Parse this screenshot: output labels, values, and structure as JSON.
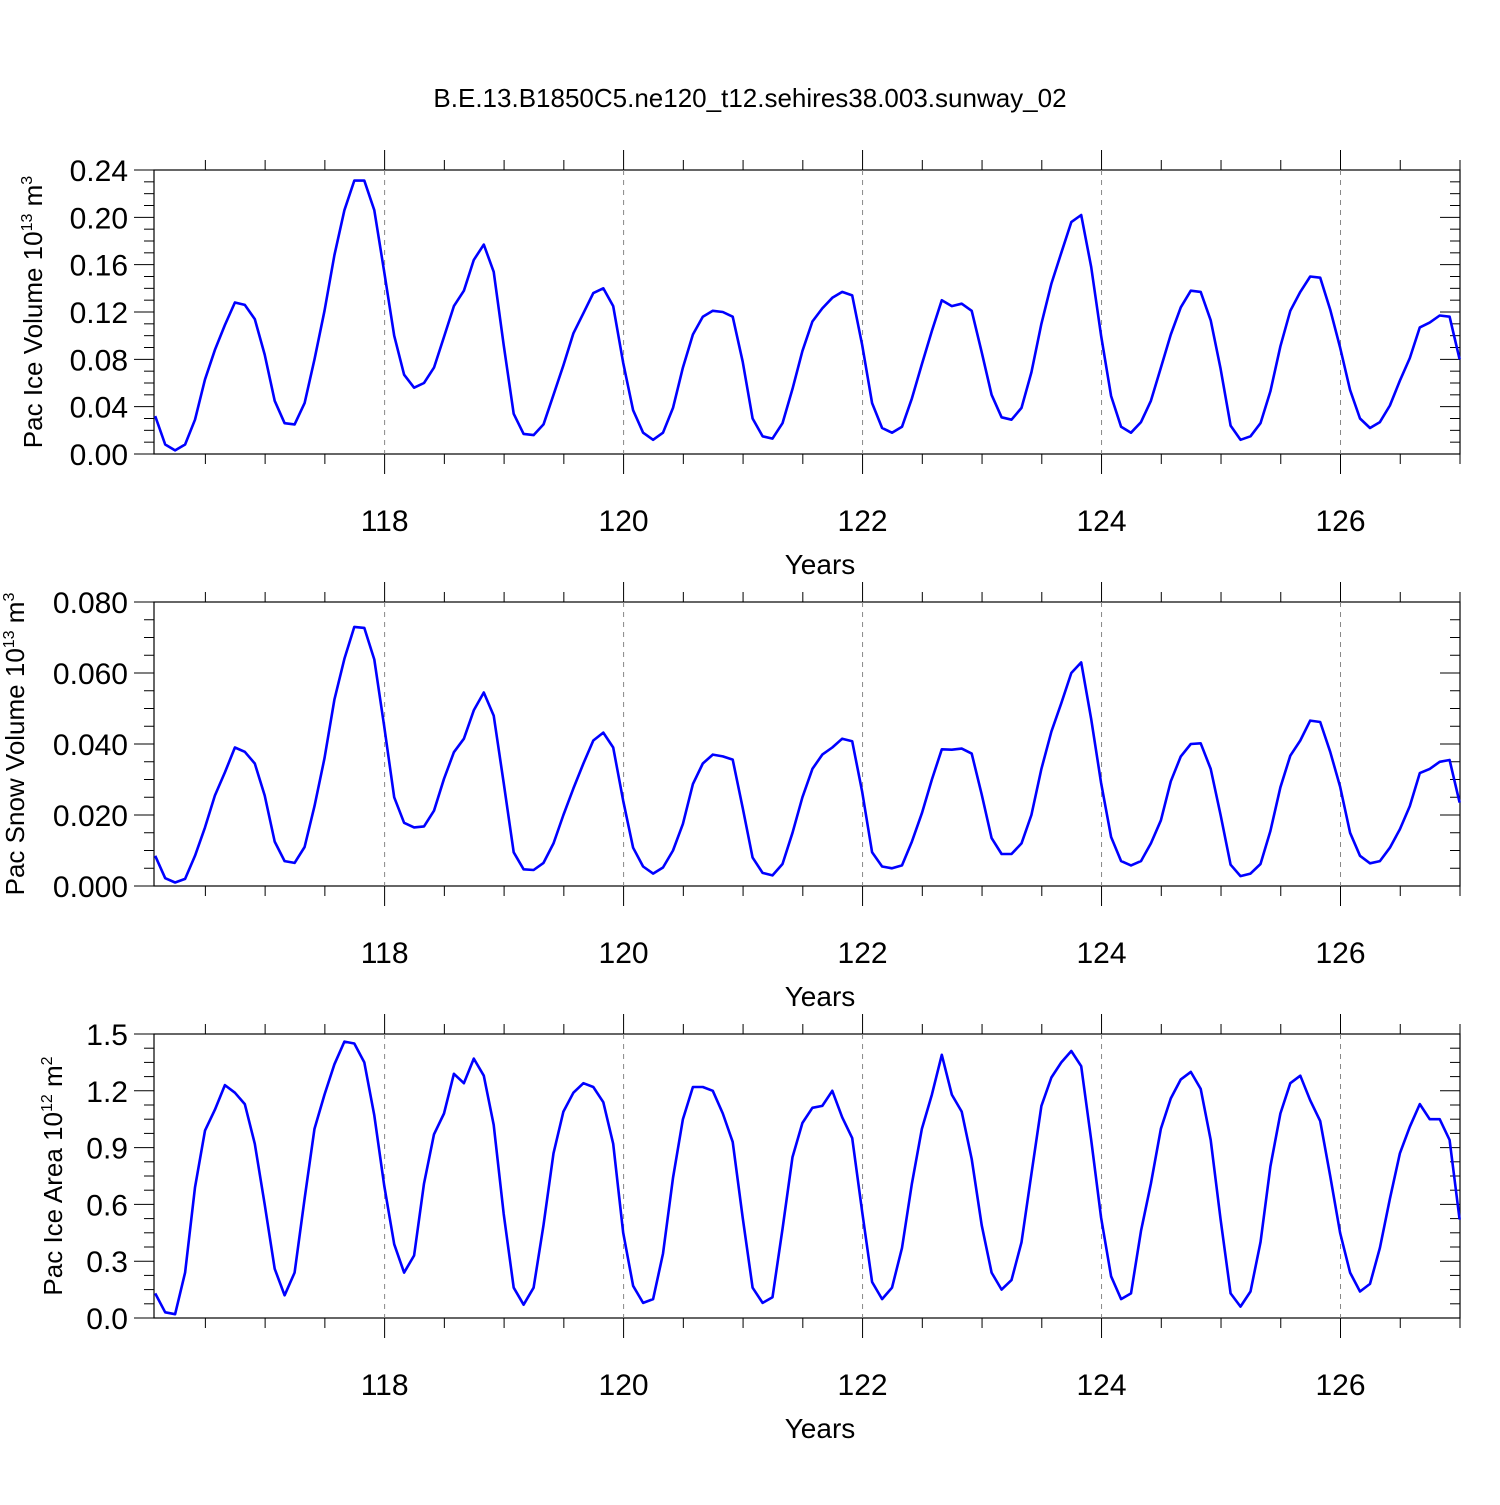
{
  "title": "B.E.13.B1850C5.ne120_t12.sehires38.003.sunway_02",
  "line_color": "#0000ff",
  "grid_color": "#888888",
  "chart_data": [
    {
      "type": "line",
      "ylabel": {
        "text": "Pac Ice Volume 10",
        "sup": "13",
        "unit": " m",
        "unit_sup": "3"
      },
      "xlabel": "Years",
      "xlim": [
        116.07,
        127.0
      ],
      "ylim": [
        0.0,
        0.24
      ],
      "xticks": [
        118,
        120,
        122,
        124,
        126
      ],
      "xtick_labels": [
        "118",
        "120",
        "122",
        "124",
        "126"
      ],
      "yticks": [
        0.0,
        0.04,
        0.08,
        0.12,
        0.16,
        0.2,
        0.24
      ],
      "ytick_labels": [
        "0.00",
        "0.04",
        "0.08",
        "0.12",
        "0.16",
        "0.20",
        "0.24"
      ],
      "grid": "vertical dashed at major x ticks",
      "x_start": 116.08,
      "x_step": 0.0833333,
      "series": [
        {
          "values": [
            0.032,
            0.008,
            0.003,
            0.008,
            0.029,
            0.063,
            0.088,
            0.109,
            0.128,
            0.126,
            0.114,
            0.084,
            0.045,
            0.026,
            0.025,
            0.043,
            0.08,
            0.121,
            0.168,
            0.206,
            0.231,
            0.231,
            0.206,
            0.154,
            0.1,
            0.067,
            0.056,
            0.06,
            0.073,
            0.099,
            0.125,
            0.138,
            0.164,
            0.177,
            0.154,
            0.092,
            0.034,
            0.017,
            0.016,
            0.025,
            0.05,
            0.075,
            0.102,
            0.119,
            0.136,
            0.14,
            0.125,
            0.077,
            0.037,
            0.018,
            0.012,
            0.018,
            0.039,
            0.073,
            0.101,
            0.116,
            0.121,
            0.12,
            0.116,
            0.078,
            0.03,
            0.015,
            0.013,
            0.026,
            0.055,
            0.087,
            0.112,
            0.123,
            0.132,
            0.137,
            0.134,
            0.092,
            0.043,
            0.022,
            0.018,
            0.023,
            0.047,
            0.076,
            0.104,
            0.13,
            0.125,
            0.127,
            0.121,
            0.086,
            0.05,
            0.031,
            0.029,
            0.039,
            0.069,
            0.11,
            0.144,
            0.17,
            0.196,
            0.202,
            0.158,
            0.1,
            0.049,
            0.023,
            0.018,
            0.027,
            0.045,
            0.073,
            0.101,
            0.124,
            0.138,
            0.137,
            0.113,
            0.072,
            0.024,
            0.012,
            0.015,
            0.026,
            0.053,
            0.091,
            0.121,
            0.137,
            0.15,
            0.149,
            0.122,
            0.09,
            0.054,
            0.03,
            0.022,
            0.027,
            0.041,
            0.062,
            0.081,
            0.107,
            0.111,
            0.117,
            0.116,
            0.08
          ]
        }
      ]
    },
    {
      "type": "line",
      "ylabel": {
        "text": "Pac Snow Volume 10",
        "sup": "13",
        "unit": " m",
        "unit_sup": "3"
      },
      "xlabel": "Years",
      "xlim": [
        116.07,
        127.0
      ],
      "ylim": [
        0.0,
        0.08
      ],
      "xticks": [
        118,
        120,
        122,
        124,
        126
      ],
      "xtick_labels": [
        "118",
        "120",
        "122",
        "124",
        "126"
      ],
      "yticks": [
        0.0,
        0.02,
        0.04,
        0.06,
        0.08
      ],
      "ytick_labels": [
        "0.000",
        "0.020",
        "0.040",
        "0.060",
        "0.080"
      ],
      "grid": "vertical dashed at major x ticks",
      "x_start": 116.08,
      "x_step": 0.0833333,
      "series": [
        {
          "values": [
            0.0085,
            0.0022,
            0.001,
            0.002,
            0.0085,
            0.0165,
            0.0255,
            0.032,
            0.039,
            0.0378,
            0.0345,
            0.0255,
            0.0125,
            0.007,
            0.0065,
            0.011,
            0.0225,
            0.036,
            0.0525,
            0.064,
            0.073,
            0.0727,
            0.0638,
            0.045,
            0.025,
            0.0178,
            0.0165,
            0.0168,
            0.0212,
            0.0302,
            0.0377,
            0.0415,
            0.0495,
            0.0545,
            0.048,
            0.029,
            0.0095,
            0.0047,
            0.0045,
            0.0065,
            0.012,
            0.02,
            0.0275,
            0.0345,
            0.041,
            0.0432,
            0.039,
            0.024,
            0.0108,
            0.0055,
            0.0035,
            0.0052,
            0.01,
            0.0175,
            0.0287,
            0.0345,
            0.037,
            0.0365,
            0.0356,
            0.022,
            0.008,
            0.0037,
            0.003,
            0.0062,
            0.015,
            0.025,
            0.033,
            0.037,
            0.039,
            0.0415,
            0.0408,
            0.0265,
            0.0095,
            0.0055,
            0.005,
            0.0058,
            0.0125,
            0.0205,
            0.03,
            0.0385,
            0.0384,
            0.0387,
            0.0373,
            0.0258,
            0.0135,
            0.009,
            0.009,
            0.012,
            0.02,
            0.033,
            0.0435,
            0.0515,
            0.06,
            0.063,
            0.047,
            0.029,
            0.0138,
            0.007,
            0.0058,
            0.007,
            0.012,
            0.0185,
            0.0295,
            0.0365,
            0.04,
            0.0402,
            0.033,
            0.02,
            0.006,
            0.0028,
            0.0035,
            0.0062,
            0.0155,
            0.0278,
            0.0367,
            0.041,
            0.0466,
            0.0462,
            0.0378,
            0.028,
            0.015,
            0.0085,
            0.0064,
            0.007,
            0.0108,
            0.016,
            0.0225,
            0.0318,
            0.033,
            0.035,
            0.0355,
            0.0235
          ]
        }
      ]
    },
    {
      "type": "line",
      "ylabel": {
        "text": "Pac Ice Area 10",
        "sup": "12",
        "unit": " m",
        "unit_sup": "2"
      },
      "xlabel": "Years",
      "xlim": [
        116.07,
        127.0
      ],
      "ylim": [
        0.0,
        1.5
      ],
      "xticks": [
        118,
        120,
        122,
        124,
        126
      ],
      "xtick_labels": [
        "118",
        "120",
        "122",
        "124",
        "126"
      ],
      "yticks": [
        0.0,
        0.3,
        0.6,
        0.9,
        1.2,
        1.5
      ],
      "ytick_labels": [
        "0.0",
        "0.3",
        "0.6",
        "0.9",
        "1.2",
        "1.5"
      ],
      "grid": "vertical dashed at major x ticks",
      "x_start": 116.08,
      "x_step": 0.0833333,
      "series": [
        {
          "values": [
            0.13,
            0.03,
            0.02,
            0.24,
            0.69,
            0.99,
            1.1,
            1.23,
            1.19,
            1.13,
            0.92,
            0.6,
            0.26,
            0.12,
            0.24,
            0.63,
            1.0,
            1.18,
            1.34,
            1.46,
            1.45,
            1.35,
            1.07,
            0.7,
            0.39,
            0.24,
            0.33,
            0.71,
            0.97,
            1.08,
            1.29,
            1.24,
            1.37,
            1.28,
            1.02,
            0.55,
            0.16,
            0.07,
            0.16,
            0.49,
            0.87,
            1.09,
            1.19,
            1.24,
            1.22,
            1.14,
            0.92,
            0.45,
            0.17,
            0.08,
            0.1,
            0.34,
            0.74,
            1.05,
            1.22,
            1.22,
            1.2,
            1.08,
            0.93,
            0.53,
            0.16,
            0.08,
            0.11,
            0.47,
            0.85,
            1.03,
            1.11,
            1.12,
            1.2,
            1.06,
            0.95,
            0.56,
            0.19,
            0.1,
            0.16,
            0.37,
            0.71,
            1.0,
            1.18,
            1.39,
            1.18,
            1.09,
            0.84,
            0.49,
            0.24,
            0.15,
            0.2,
            0.4,
            0.76,
            1.12,
            1.27,
            1.35,
            1.41,
            1.33,
            0.94,
            0.53,
            0.22,
            0.1,
            0.13,
            0.46,
            0.71,
            1.0,
            1.16,
            1.26,
            1.3,
            1.21,
            0.94,
            0.52,
            0.13,
            0.06,
            0.14,
            0.4,
            0.8,
            1.08,
            1.24,
            1.28,
            1.15,
            1.04,
            0.75,
            0.45,
            0.24,
            0.14,
            0.18,
            0.37,
            0.63,
            0.87,
            1.01,
            1.13,
            1.05,
            1.05,
            0.94,
            0.52
          ]
        }
      ]
    }
  ]
}
